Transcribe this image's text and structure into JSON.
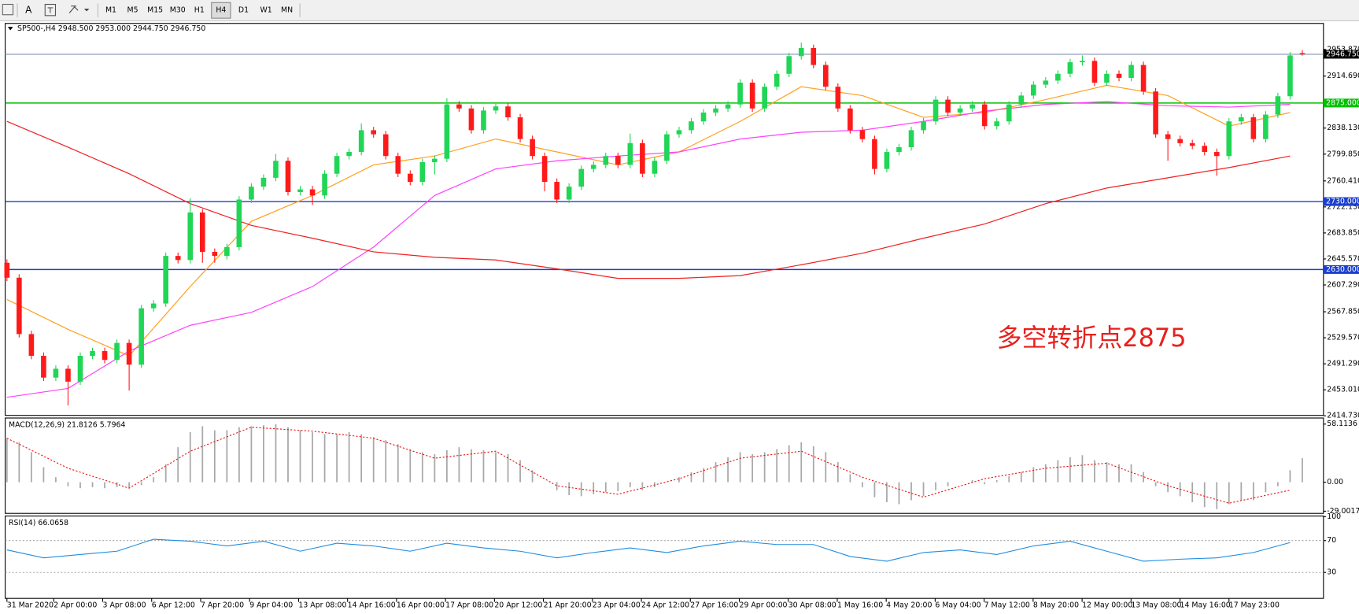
{
  "toolbar": {
    "text_tool": "A",
    "timeframes": [
      "M1",
      "M5",
      "M15",
      "M30",
      "H1",
      "H4",
      "D1",
      "W1",
      "MN"
    ],
    "active": "H4"
  },
  "chart_data": [
    {
      "type": "candlestick",
      "title": "SP500-,H4",
      "subtitle": "2948.500 2953.000 2944.750 2946.750",
      "up_color": "#1fd655",
      "down_color": "#ff1a1a",
      "ylim": [
        2415.35,
        2992.15
      ],
      "yticks": [
        {
          "value": 2953.87,
          "label": "2953.870"
        },
        {
          "value": 2914.69,
          "label": "2914.690"
        },
        {
          "value": 2838.13,
          "label": "2838.130"
        },
        {
          "value": 2799.85,
          "label": "2799.850"
        },
        {
          "value": 2760.41,
          "label": "2760.410"
        },
        {
          "value": 2722.13,
          "label": "2722.130"
        },
        {
          "value": 2683.85,
          "label": "2683.850"
        },
        {
          "value": 2645.57,
          "label": "2645.570"
        },
        {
          "value": 2607.29,
          "label": "2607.290"
        },
        {
          "value": 2567.85,
          "label": "2567.850"
        },
        {
          "value": 2529.57,
          "label": "2529.570"
        },
        {
          "value": 2491.29,
          "label": "2491.290"
        },
        {
          "value": 2453.01,
          "label": "2453.010"
        },
        {
          "value": 2414.73,
          "label": "2414.730"
        }
      ],
      "hlines": [
        {
          "value": 2946.75,
          "label": "2946.750",
          "color": "#9aa8c0",
          "label_color": "#000000"
        },
        {
          "value": 2875,
          "label": "2875.000",
          "color": "#00c000",
          "label_color": "#00c000"
        },
        {
          "value": 2730,
          "label": "2730.000",
          "color": "#1a3fd0",
          "label_color": "#1a3fd0"
        },
        {
          "value": 2630,
          "label": "2630.000",
          "color": "#1a3fd0",
          "label_color": "#1a3fd0"
        }
      ],
      "annotation": {
        "text": "多空转折点2875",
        "color": "#e8201c"
      },
      "ohlc": [
        [
          2640,
          2645,
          2613,
          2618
        ],
        [
          2618,
          2623,
          2530,
          2535
        ],
        [
          2535,
          2540,
          2498,
          2503
        ],
        [
          2503,
          2508,
          2466,
          2471
        ],
        [
          2471,
          2489,
          2466,
          2484
        ],
        [
          2484,
          2489,
          2430,
          2465
        ],
        [
          2465,
          2508,
          2460,
          2503
        ],
        [
          2503,
          2515,
          2498,
          2510
        ],
        [
          2510,
          2515,
          2492,
          2497
        ],
        [
          2497,
          2527,
          2492,
          2522
        ],
        [
          2522,
          2527,
          2452,
          2490
        ],
        [
          2490,
          2578,
          2485,
          2573
        ],
        [
          2573,
          2585,
          2568,
          2580
        ],
        [
          2580,
          2655,
          2575,
          2650
        ],
        [
          2650,
          2655,
          2639,
          2644
        ],
        [
          2644,
          2735,
          2639,
          2714
        ],
        [
          2714,
          2719,
          2640,
          2656
        ],
        [
          2656,
          2661,
          2640,
          2650
        ],
        [
          2650,
          2668,
          2645,
          2663
        ],
        [
          2663,
          2738,
          2658,
          2733
        ],
        [
          2733,
          2757,
          2728,
          2752
        ],
        [
          2752,
          2770,
          2747,
          2765
        ],
        [
          2765,
          2800,
          2760,
          2790
        ],
        [
          2790,
          2795,
          2739,
          2744
        ],
        [
          2744,
          2753,
          2739,
          2748
        ],
        [
          2748,
          2753,
          2725,
          2739
        ],
        [
          2739,
          2776,
          2734,
          2771
        ],
        [
          2771,
          2802,
          2766,
          2797
        ],
        [
          2797,
          2808,
          2792,
          2803
        ],
        [
          2803,
          2845,
          2798,
          2835
        ],
        [
          2835,
          2840,
          2824,
          2829
        ],
        [
          2829,
          2834,
          2792,
          2797
        ],
        [
          2797,
          2802,
          2766,
          2771
        ],
        [
          2771,
          2776,
          2754,
          2759
        ],
        [
          2759,
          2793,
          2754,
          2788
        ],
        [
          2788,
          2798,
          2770,
          2793
        ],
        [
          2793,
          2882,
          2788,
          2873
        ],
        [
          2873,
          2878,
          2862,
          2867
        ],
        [
          2867,
          2872,
          2830,
          2835
        ],
        [
          2835,
          2869,
          2830,
          2864
        ],
        [
          2864,
          2875,
          2859,
          2870
        ],
        [
          2870,
          2875,
          2849,
          2854
        ],
        [
          2854,
          2859,
          2817,
          2822
        ],
        [
          2822,
          2827,
          2792,
          2797
        ],
        [
          2797,
          2802,
          2745,
          2759
        ],
        [
          2759,
          2764,
          2728,
          2733
        ],
        [
          2733,
          2757,
          2728,
          2752
        ],
        [
          2752,
          2783,
          2747,
          2778
        ],
        [
          2778,
          2789,
          2773,
          2784
        ],
        [
          2784,
          2802,
          2779,
          2797
        ],
        [
          2797,
          2802,
          2779,
          2784
        ],
        [
          2784,
          2830,
          2779,
          2816
        ],
        [
          2816,
          2821,
          2766,
          2771
        ],
        [
          2771,
          2795,
          2766,
          2790
        ],
        [
          2790,
          2834,
          2785,
          2829
        ],
        [
          2829,
          2840,
          2824,
          2835
        ],
        [
          2835,
          2853,
          2830,
          2848
        ],
        [
          2848,
          2866,
          2843,
          2861
        ],
        [
          2861,
          2872,
          2856,
          2867
        ],
        [
          2867,
          2878,
          2862,
          2873
        ],
        [
          2873,
          2910,
          2868,
          2905
        ],
        [
          2905,
          2910,
          2862,
          2867
        ],
        [
          2867,
          2904,
          2862,
          2899
        ],
        [
          2899,
          2923,
          2894,
          2918
        ],
        [
          2918,
          2949,
          2913,
          2944
        ],
        [
          2944,
          2964,
          2939,
          2956
        ],
        [
          2956,
          2961,
          2926,
          2931
        ],
        [
          2931,
          2936,
          2894,
          2899
        ],
        [
          2899,
          2904,
          2862,
          2867
        ],
        [
          2867,
          2872,
          2830,
          2835
        ],
        [
          2835,
          2840,
          2817,
          2822
        ],
        [
          2822,
          2827,
          2770,
          2778
        ],
        [
          2778,
          2808,
          2773,
          2803
        ],
        [
          2803,
          2815,
          2798,
          2810
        ],
        [
          2810,
          2840,
          2805,
          2835
        ],
        [
          2835,
          2853,
          2830,
          2848
        ],
        [
          2848,
          2885,
          2843,
          2880
        ],
        [
          2880,
          2885,
          2856,
          2861
        ],
        [
          2861,
          2872,
          2856,
          2867
        ],
        [
          2867,
          2878,
          2862,
          2873
        ],
        [
          2873,
          2878,
          2836,
          2841
        ],
        [
          2841,
          2853,
          2836,
          2848
        ],
        [
          2848,
          2878,
          2843,
          2873
        ],
        [
          2873,
          2891,
          2868,
          2886
        ],
        [
          2886,
          2907,
          2881,
          2902
        ],
        [
          2902,
          2913,
          2897,
          2908
        ],
        [
          2908,
          2923,
          2903,
          2918
        ],
        [
          2918,
          2940,
          2913,
          2935
        ],
        [
          2935,
          2945,
          2930,
          2937
        ],
        [
          2937,
          2942,
          2900,
          2905
        ],
        [
          2905,
          2923,
          2900,
          2918
        ],
        [
          2918,
          2923,
          2907,
          2912
        ],
        [
          2912,
          2936,
          2907,
          2931
        ],
        [
          2931,
          2936,
          2887,
          2892
        ],
        [
          2892,
          2897,
          2824,
          2829
        ],
        [
          2829,
          2834,
          2790,
          2822
        ],
        [
          2822,
          2827,
          2811,
          2816
        ],
        [
          2816,
          2821,
          2807,
          2812
        ],
        [
          2812,
          2817,
          2798,
          2803
        ],
        [
          2803,
          2808,
          2768,
          2797
        ],
        [
          2797,
          2853,
          2792,
          2848
        ],
        [
          2848,
          2859,
          2843,
          2854
        ],
        [
          2854,
          2859,
          2817,
          2822
        ],
        [
          2822,
          2863,
          2817,
          2858
        ],
        [
          2858,
          2890,
          2853,
          2885
        ],
        [
          2885,
          2950,
          2880,
          2945
        ],
        [
          2948.5,
          2953,
          2944.75,
          2946.75
        ]
      ],
      "lines": [
        {
          "color": "#ffa020",
          "values": [
            2586,
            2542,
            2503,
            2605,
            2701,
            2739,
            2784,
            2797,
            2822,
            2803,
            2784,
            2803,
            2848,
            2899,
            2886,
            2854,
            2861,
            2880,
            2901,
            2886,
            2841,
            2861
          ]
        },
        {
          "color": "#ff40ff",
          "values": [
            2442,
            2455,
            2510,
            2548,
            2567,
            2605,
            2663,
            2739,
            2778,
            2790,
            2797,
            2803,
            2822,
            2832,
            2835,
            2848,
            2863,
            2873,
            2877,
            2871,
            2869,
            2873
          ]
        },
        {
          "color": "#ee2020",
          "values": [
            2848,
            2810,
            2771,
            2727,
            2695,
            2676,
            2656,
            2648,
            2644,
            2631,
            2617,
            2617,
            2621,
            2637,
            2654,
            2676,
            2697,
            2727,
            2750,
            2765,
            2780,
            2797
          ]
        }
      ]
    },
    {
      "type": "macd",
      "title": "MACD(12,26,9) 21.8126 5.7964",
      "ylim": [
        -31.2,
        64.2
      ],
      "yticks": [
        58.1136,
        {
          "value": 0,
          "label": "0.00"
        },
        -29.0017
      ],
      "hist_color": "#a8a8a8",
      "values": [
        44,
        40,
        30,
        15,
        5,
        -4,
        -6,
        -5,
        -6,
        -5,
        -6,
        -3,
        5,
        18,
        35,
        50,
        56,
        52,
        52,
        55,
        56,
        57,
        58,
        55,
        52,
        50,
        48,
        48,
        50,
        48,
        45,
        42,
        38,
        33,
        30,
        28,
        32,
        35,
        33,
        32,
        30,
        28,
        22,
        12,
        0,
        -8,
        -13,
        -14,
        -12,
        -10,
        -9,
        -5,
        -8,
        -5,
        0,
        5,
        10,
        14,
        20,
        25,
        30,
        28,
        30,
        33,
        37,
        40,
        36,
        30,
        20,
        8,
        -5,
        -15,
        -20,
        -22,
        -18,
        -14,
        -8,
        -4,
        0,
        2,
        -2,
        2,
        6,
        10,
        15,
        18,
        22,
        25,
        27,
        22,
        20,
        18,
        18,
        10,
        -4,
        -10,
        -14,
        -20,
        -25,
        -27,
        -22,
        -18,
        -18,
        -10,
        -4,
        12,
        24
      ],
      "signal": {
        "color": "#ee1010",
        "values": [
          44,
          14,
          -6,
          31,
          55,
          51,
          44,
          24,
          31,
          -3.5,
          -12,
          3.5,
          24,
          31,
          5,
          -15,
          3.5,
          14,
          19,
          -3.5,
          -21,
          -8
        ]
      }
    },
    {
      "type": "rsi",
      "title": "RSI(14) 66.0658",
      "ylim": [
        -2.5,
        100.8
      ],
      "yticks": [
        100,
        70,
        30
      ],
      "levels": [
        70,
        30
      ],
      "color": "#1e8ce0",
      "values": [
        58.3,
        48.3,
        52.5,
        56.7,
        71.7,
        69.2,
        63.3,
        69.2,
        56.7,
        66.7,
        63.3,
        56.7,
        66.7,
        60.8,
        56.7,
        48.3,
        55,
        60.8,
        55,
        63.3,
        69.2,
        65,
        65,
        50,
        44.2,
        55,
        58.3,
        52.5,
        63.3,
        69.2,
        56.7,
        44.2,
        46.7,
        48.3,
        55,
        67.5
      ],
      "x_labels": [
        "31 Mar 2020",
        "2 Apr 00:00",
        "3 Apr 08:00",
        "6 Apr 12:00",
        "7 Apr 20:00",
        "9 Apr 04:00",
        "13 Apr 08:00",
        "14 Apr 16:00",
        "16 Apr 00:00",
        "17 Apr 08:00",
        "20 Apr 12:00",
        "21 Apr 20:00",
        "23 Apr 04:00",
        "24 Apr 12:00",
        "27 Apr 16:00",
        "29 Apr 00:00",
        "30 Apr 08:00",
        "1 May 16:00",
        "4 May 20:00",
        "6 May 04:00",
        "7 May 12:00",
        "8 May 20:00",
        "12 May 00:00",
        "13 May 08:00",
        "14 May 16:00",
        "17 May 23:00"
      ]
    }
  ]
}
